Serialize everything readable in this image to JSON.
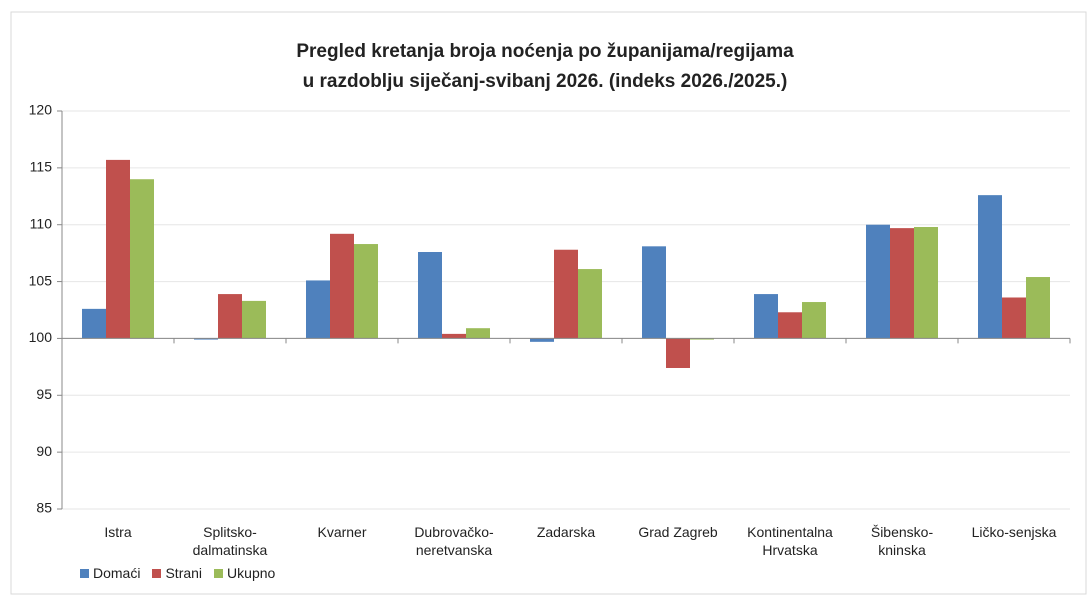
{
  "chart_data": {
    "type": "bar",
    "title": [
      "Pregled kretanja broja noćenja po županijama/regijama",
      "u razdoblju siječanj-svibanj 2026. (indeks 2026./2025.)"
    ],
    "categories": [
      "Istra",
      "Splitsko-dalmatinska",
      "Kvarner",
      "Dubrovačko-neretvanska",
      "Zadarska",
      "Grad Zagreb",
      "Kontinentalna Hrvatska",
      "Šibensko-kninska",
      "Ličko-senjska"
    ],
    "series": [
      {
        "name": "Domaći",
        "color": "#4f81bd",
        "values": [
          102.6,
          99.9,
          105.1,
          107.6,
          99.7,
          108.1,
          103.9,
          110.0,
          112.6
        ]
      },
      {
        "name": "Strani",
        "color": "#c0504d",
        "values": [
          115.7,
          103.9,
          109.2,
          100.4,
          107.8,
          97.4,
          102.3,
          109.7,
          103.6
        ]
      },
      {
        "name": "Ukupno",
        "color": "#9bbb59",
        "values": [
          114.0,
          103.3,
          108.3,
          100.9,
          106.1,
          99.9,
          103.2,
          109.8,
          105.4
        ]
      }
    ],
    "baseline": 100,
    "ylim": [
      85,
      120
    ],
    "yticks": [
      85,
      90,
      95,
      100,
      105,
      110,
      115,
      120
    ],
    "grid": true,
    "legend": "bottom-left"
  }
}
